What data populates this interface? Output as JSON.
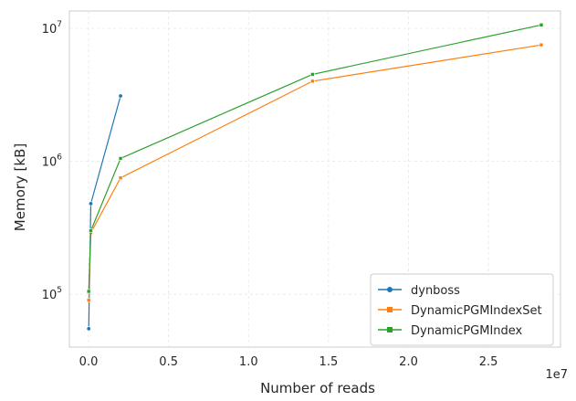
{
  "chart_data": {
    "type": "line",
    "title": "",
    "xlabel": "Number of reads",
    "ylabel": "Memory [kB]",
    "x_scale": "linear",
    "y_scale": "log",
    "x_offset_label": "1e7",
    "xlim": [
      -1200000,
      29500000
    ],
    "ylim": [
      40000,
      13500000
    ],
    "x_ticks": [
      0,
      5000000,
      10000000,
      15000000,
      20000000,
      25000000
    ],
    "x_tick_labels": [
      "0.0",
      "0.5",
      "1.0",
      "1.5",
      "2.0",
      "2.5"
    ],
    "y_ticks": [
      100000,
      1000000,
      10000000
    ],
    "y_tick_labels": [
      {
        "base": "10",
        "exp": "5"
      },
      {
        "base": "10",
        "exp": "6"
      },
      {
        "base": "10",
        "exp": "7"
      }
    ],
    "grid": true,
    "legend_position": "lower-right",
    "series": [
      {
        "name": "dynboss",
        "color": "#1f77b4",
        "marker": "circle",
        "x": [
          10000,
          140000,
          2000000
        ],
        "y": [
          55000,
          480000,
          3100000
        ]
      },
      {
        "name": "DynamicPGMIndexSet",
        "color": "#ff7f0e",
        "marker": "square",
        "x": [
          10000,
          140000,
          2000000,
          14000000,
          28300000
        ],
        "y": [
          90000,
          290000,
          750000,
          4000000,
          7500000
        ]
      },
      {
        "name": "DynamicPGMIndex",
        "color": "#2ca02c",
        "marker": "square",
        "x": [
          10000,
          140000,
          2000000,
          14000000,
          28300000
        ],
        "y": [
          105000,
          300000,
          1050000,
          4500000,
          10600000
        ]
      }
    ]
  }
}
